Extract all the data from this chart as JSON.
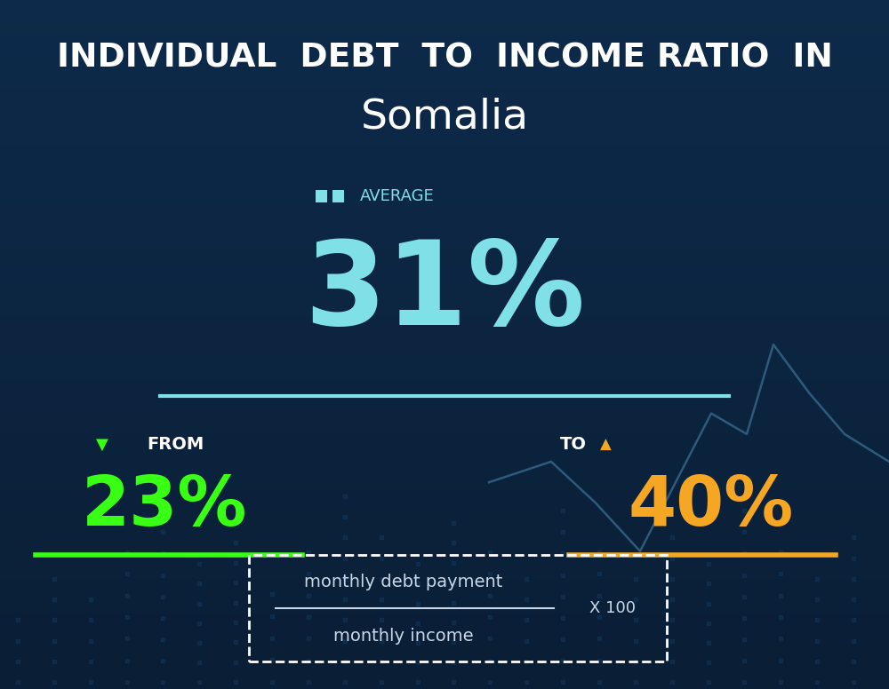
{
  "title_line1": "INDIVIDUAL  DEBT  TO  INCOME RATIO  IN",
  "title_line2": "Somalia",
  "avg_label": "AVERAGE",
  "avg_value": "31%",
  "from_label": "FROM",
  "from_value": "23%",
  "to_label": "TO",
  "to_value": "40%",
  "formula_numerator": "monthly debt payment",
  "formula_denominator": "monthly income",
  "formula_multiplier": "X 100",
  "bg_color_top": "#0d2a4a",
  "bg_color_bottom": "#0a1e35",
  "avg_color": "#7fe0e8",
  "avg_label_color": "#7fe0e8",
  "from_color": "#39ff14",
  "to_color": "#f5a623",
  "title_color": "#ffffff",
  "subtitle_color": "#ffffff",
  "formula_color": "#c8d8e8",
  "separator_color": "#7fe0e8",
  "from_underline_color": "#39ff14",
  "to_underline_color": "#f5a623",
  "dot_color": "#1a4a7a",
  "line_color": "#5a9fc8"
}
